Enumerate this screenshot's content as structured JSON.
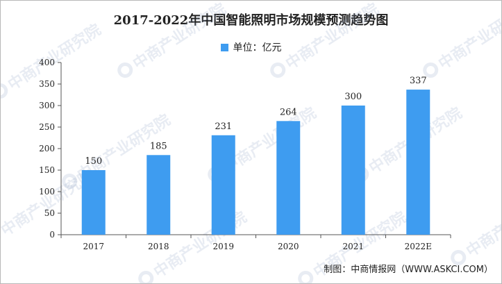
{
  "chart_data": {
    "type": "bar",
    "title": "2017-2022年中国智能照明市场规模预测趋势图",
    "legend": "单位：亿元",
    "categories": [
      "2017",
      "2018",
      "2019",
      "2020",
      "2021",
      "2022E"
    ],
    "values": [
      150,
      185,
      231,
      264,
      300,
      337
    ],
    "ylim": [
      0,
      400
    ],
    "yticks": [
      0,
      50,
      100,
      150,
      200,
      250,
      300,
      350,
      400
    ],
    "xlabel": "",
    "ylabel": "",
    "grid": false,
    "legend_position": "top-center"
  },
  "source": "制图：中商情报网（WWW.ASKCI.COM）",
  "watermark": "中商产业研究院",
  "colors": {
    "bar": "#3e9cf0",
    "axis": "#555555",
    "text": "#222222"
  }
}
